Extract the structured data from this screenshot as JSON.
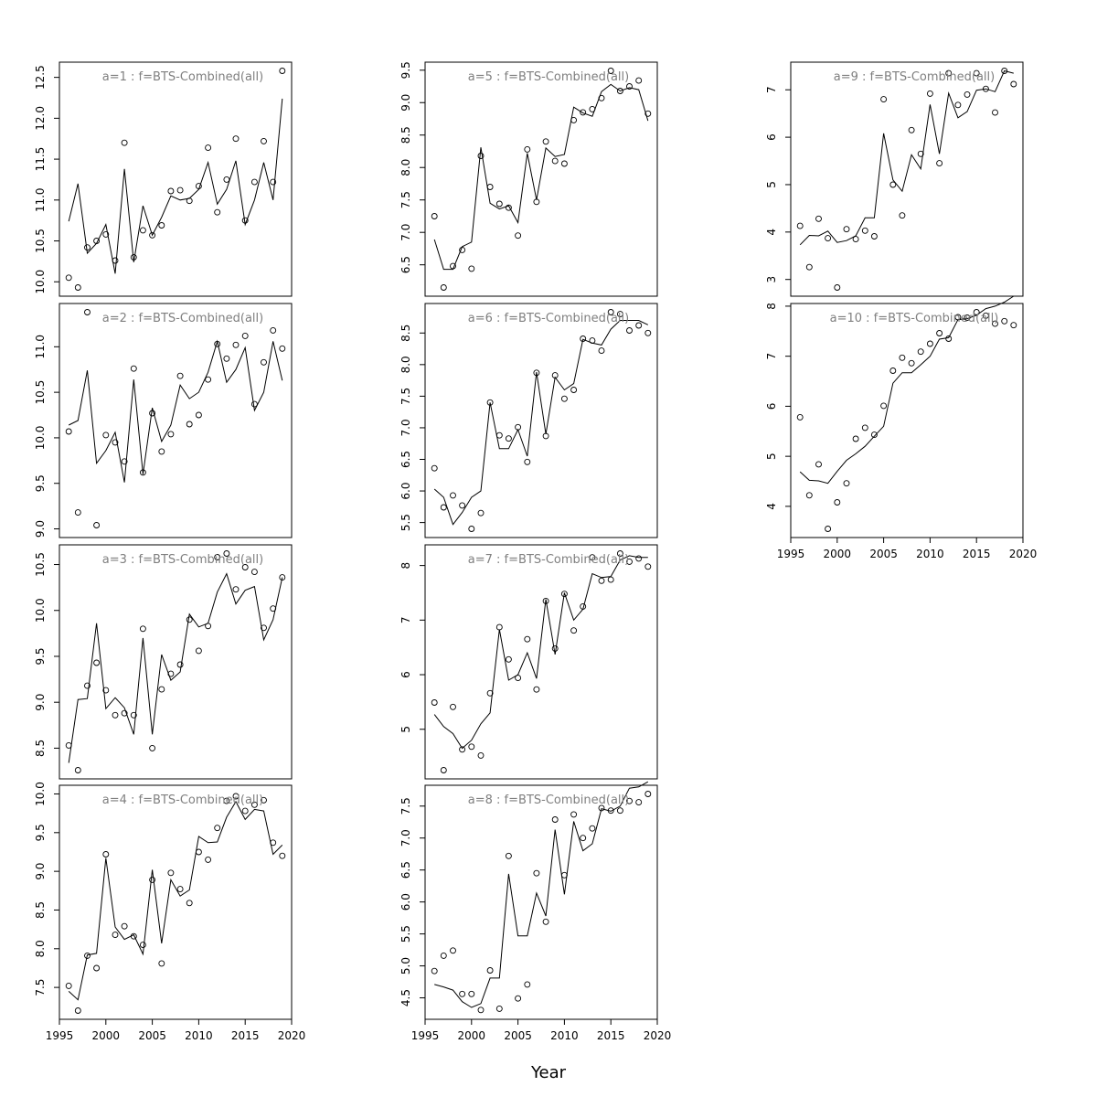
{
  "figure": {
    "xlabel": "Year"
  },
  "chart_data": [
    {
      "type": "scatter+line",
      "title": "a=1  :  f=BTS-Combined(all)",
      "xlim": [
        1995,
        2020
      ],
      "ylim": [
        9.93,
        12.58
      ],
      "yticks": [
        10.0,
        10.5,
        11.0,
        11.5,
        12.0,
        12.5
      ],
      "ytick_labels": [
        "10.0",
        "10.5",
        "11.0",
        "11.5",
        "12.0",
        "12.5"
      ],
      "x": [
        1996,
        1997,
        1998,
        1999,
        2000,
        2001,
        2002,
        2003,
        2004,
        2005,
        2006,
        2007,
        2008,
        2009,
        2010,
        2011,
        2012,
        2013,
        2014,
        2015,
        2016,
        2017,
        2018,
        2019
      ],
      "points": [
        10.05,
        9.93,
        10.42,
        10.5,
        10.58,
        10.26,
        11.7,
        10.3,
        10.63,
        10.57,
        10.69,
        11.11,
        11.12,
        10.99,
        11.17,
        11.64,
        10.85,
        11.25,
        11.75,
        10.75,
        11.22,
        11.72,
        11.22,
        12.58
      ],
      "line": [
        10.74,
        11.2,
        10.35,
        10.47,
        10.7,
        10.1,
        11.38,
        10.24,
        10.93,
        10.57,
        10.79,
        11.05,
        11.0,
        11.02,
        11.13,
        11.46,
        10.95,
        11.13,
        11.48,
        10.7,
        11.0,
        11.46,
        11.0,
        12.24
      ]
    },
    {
      "type": "scatter+line",
      "title": "a=2  :  f=BTS-Combined(all)",
      "xlim": [
        1995,
        2020
      ],
      "ylim": [
        9.0,
        11.38
      ],
      "yticks": [
        9.0,
        9.5,
        10.0,
        10.5,
        11.0
      ],
      "ytick_labels": [
        "9.0",
        "9.5",
        "10.0",
        "10.5",
        "11.0"
      ],
      "x": [
        1996,
        1997,
        1998,
        1999,
        2000,
        2001,
        2002,
        2003,
        2004,
        2005,
        2006,
        2007,
        2008,
        2009,
        2010,
        2011,
        2012,
        2013,
        2014,
        2015,
        2016,
        2017,
        2018,
        2019
      ],
      "points": [
        10.07,
        9.18,
        11.38,
        9.04,
        10.03,
        9.95,
        9.74,
        10.76,
        9.62,
        10.27,
        9.85,
        10.04,
        10.68,
        10.15,
        10.25,
        10.64,
        11.03,
        10.87,
        11.02,
        11.12,
        10.37,
        10.83,
        11.18,
        10.98
      ],
      "line": [
        10.14,
        10.19,
        10.74,
        9.72,
        9.86,
        10.06,
        9.51,
        10.64,
        9.6,
        10.33,
        9.96,
        10.14,
        10.58,
        10.43,
        10.5,
        10.72,
        11.06,
        10.61,
        10.75,
        10.99,
        10.3,
        10.5,
        11.06,
        10.63
      ]
    },
    {
      "type": "scatter+line",
      "title": "a=3  :  f=BTS-Combined(all)",
      "xlim": [
        1995,
        2020
      ],
      "ylim": [
        8.26,
        10.62
      ],
      "yticks": [
        8.5,
        9.0,
        9.5,
        10.0,
        10.5
      ],
      "ytick_labels": [
        "8.5",
        "9.0",
        "9.5",
        "10.0",
        "10.5"
      ],
      "x": [
        1996,
        1997,
        1998,
        1999,
        2000,
        2001,
        2002,
        2003,
        2004,
        2005,
        2006,
        2007,
        2008,
        2009,
        2010,
        2011,
        2012,
        2013,
        2014,
        2015,
        2016,
        2017,
        2018,
        2019
      ],
      "points": [
        8.53,
        8.26,
        9.18,
        9.43,
        9.13,
        8.86,
        8.88,
        8.86,
        9.8,
        8.5,
        9.14,
        9.31,
        9.41,
        9.9,
        9.56,
        9.83,
        10.58,
        10.62,
        10.23,
        10.47,
        10.42,
        9.81,
        10.02,
        10.36
      ],
      "line": [
        8.34,
        9.03,
        9.04,
        9.86,
        8.93,
        9.05,
        8.94,
        8.65,
        9.7,
        8.65,
        9.52,
        9.24,
        9.33,
        9.96,
        9.82,
        9.86,
        10.2,
        10.4,
        10.07,
        10.22,
        10.26,
        9.68,
        9.9,
        10.36
      ]
    },
    {
      "type": "scatter+line",
      "title": "a=4  :  f=BTS-Combined(all)",
      "xlim": [
        1995,
        2020
      ],
      "ylim": [
        7.2,
        10.0
      ],
      "yticks": [
        7.5,
        8.0,
        8.5,
        9.0,
        9.5,
        10.0
      ],
      "ytick_labels": [
        "7.5",
        "8.0",
        "8.5",
        "9.0",
        "9.5",
        "10.0"
      ],
      "x": [
        1996,
        1997,
        1998,
        1999,
        2000,
        2001,
        2002,
        2003,
        2004,
        2005,
        2006,
        2007,
        2008,
        2009,
        2010,
        2011,
        2012,
        2013,
        2014,
        2015,
        2016,
        2017,
        2018,
        2019
      ],
      "points": [
        7.52,
        7.2,
        7.91,
        7.75,
        9.22,
        8.18,
        8.29,
        8.16,
        8.05,
        8.89,
        7.81,
        8.98,
        8.77,
        8.59,
        9.25,
        9.15,
        9.56,
        9.91,
        9.97,
        9.78,
        9.86,
        9.92,
        9.37,
        9.2
      ],
      "line": [
        7.45,
        7.34,
        7.92,
        7.94,
        9.17,
        8.28,
        8.12,
        8.18,
        7.93,
        9.02,
        8.07,
        8.89,
        8.68,
        8.76,
        9.45,
        9.37,
        9.38,
        9.7,
        9.9,
        9.67,
        9.8,
        9.78,
        9.22,
        9.34
      ]
    },
    {
      "type": "scatter+line",
      "title": "a=5  :  f=BTS-Combined(all)",
      "xlim": [
        1995,
        2020
      ],
      "ylim": [
        6.15,
        9.49
      ],
      "yticks": [
        6.5,
        7.0,
        7.5,
        8.0,
        8.5,
        9.0,
        9.5
      ],
      "ytick_labels": [
        "6.5",
        "7.0",
        "7.5",
        "8.0",
        "8.5",
        "9.0",
        "9.5"
      ],
      "x": [
        1996,
        1997,
        1998,
        1999,
        2000,
        2001,
        2002,
        2003,
        2004,
        2005,
        2006,
        2007,
        2008,
        2009,
        2010,
        2011,
        2012,
        2013,
        2014,
        2015,
        2016,
        2017,
        2018,
        2019
      ],
      "points": [
        7.25,
        6.15,
        6.48,
        6.73,
        6.44,
        8.18,
        7.7,
        7.44,
        7.38,
        6.95,
        8.28,
        7.47,
        8.4,
        8.1,
        8.06,
        8.73,
        8.85,
        8.9,
        9.07,
        9.49,
        9.18,
        9.25,
        9.34,
        8.83
      ],
      "line": [
        6.89,
        6.43,
        6.43,
        6.78,
        6.85,
        8.31,
        7.45,
        7.36,
        7.41,
        7.15,
        8.22,
        7.5,
        8.3,
        8.17,
        8.2,
        8.93,
        8.84,
        8.79,
        9.17,
        9.28,
        9.18,
        9.23,
        9.2,
        8.72
      ]
    },
    {
      "type": "scatter+line",
      "title": "a=6  :  f=BTS-Combined(all)",
      "xlim": [
        1995,
        2020
      ],
      "ylim": [
        5.4,
        8.83
      ],
      "yticks": [
        5.5,
        6.0,
        6.5,
        7.0,
        7.5,
        8.0,
        8.5
      ],
      "ytick_labels": [
        "5.5",
        "6.0",
        "6.5",
        "7.0",
        "7.5",
        "8.0",
        "8.5"
      ],
      "x": [
        1996,
        1997,
        1998,
        1999,
        2000,
        2001,
        2002,
        2003,
        2004,
        2005,
        2006,
        2007,
        2008,
        2009,
        2010,
        2011,
        2012,
        2013,
        2014,
        2015,
        2016,
        2017,
        2018,
        2019
      ],
      "points": [
        6.36,
        5.74,
        5.93,
        5.77,
        5.4,
        5.65,
        7.4,
        6.88,
        6.83,
        7.01,
        6.46,
        7.87,
        6.87,
        7.83,
        7.46,
        7.6,
        8.41,
        8.38,
        8.22,
        8.83,
        8.8,
        8.54,
        8.62,
        8.5
      ],
      "line": [
        6.03,
        5.9,
        5.47,
        5.66,
        5.9,
        6.0,
        7.4,
        6.67,
        6.67,
        6.97,
        6.55,
        7.88,
        6.9,
        7.8,
        7.6,
        7.7,
        8.4,
        8.34,
        8.31,
        8.56,
        8.7,
        8.7,
        8.7,
        8.63
      ]
    },
    {
      "type": "scatter+line",
      "title": "a=7  :  f=BTS-Combined(all)",
      "xlim": [
        1995,
        2020
      ],
      "ylim": [
        4.25,
        8.22
      ],
      "yticks": [
        5,
        6,
        7,
        8
      ],
      "ytick_labels": [
        "5",
        "6",
        "7",
        "8"
      ],
      "x": [
        1996,
        1997,
        1998,
        1999,
        2000,
        2001,
        2002,
        2003,
        2004,
        2005,
        2006,
        2007,
        2008,
        2009,
        2010,
        2011,
        2012,
        2013,
        2014,
        2015,
        2016,
        2017,
        2018,
        2019
      ],
      "points": [
        5.49,
        4.25,
        5.41,
        4.63,
        4.68,
        4.52,
        5.66,
        6.87,
        6.28,
        5.94,
        6.65,
        5.73,
        7.35,
        6.48,
        7.48,
        6.81,
        7.25,
        8.15,
        7.72,
        7.74,
        8.22,
        8.07,
        8.13,
        7.98
      ],
      "line": [
        5.27,
        5.05,
        4.92,
        4.65,
        4.8,
        5.1,
        5.3,
        6.83,
        5.9,
        6.0,
        6.4,
        5.93,
        7.38,
        6.37,
        7.5,
        7.0,
        7.2,
        7.85,
        7.78,
        7.8,
        8.1,
        8.18,
        8.15,
        8.15
      ]
    },
    {
      "type": "scatter+line",
      "title": "a=8  :  f=BTS-Combined(all)",
      "xlim": [
        1995,
        2020
      ],
      "ylim": [
        4.3,
        7.69
      ],
      "yticks": [
        4.5,
        5.0,
        5.5,
        6.0,
        6.5,
        7.0,
        7.5
      ],
      "ytick_labels": [
        "4.5",
        "5.0",
        "5.5",
        "6.0",
        "6.5",
        "7.0",
        "7.5"
      ],
      "x": [
        1996,
        1997,
        1998,
        1999,
        2000,
        2001,
        2002,
        2003,
        2004,
        2005,
        2006,
        2007,
        2008,
        2009,
        2010,
        2011,
        2012,
        2013,
        2014,
        2015,
        2016,
        2017,
        2018,
        2019
      ],
      "points": [
        4.92,
        5.16,
        5.24,
        4.56,
        4.56,
        4.31,
        4.93,
        4.33,
        6.72,
        4.49,
        4.71,
        6.45,
        5.69,
        7.29,
        6.42,
        7.37,
        7.0,
        7.15,
        7.47,
        7.43,
        7.43,
        7.58,
        7.56,
        7.69
      ],
      "line": [
        4.71,
        4.67,
        4.62,
        4.44,
        4.35,
        4.41,
        4.81,
        4.81,
        6.44,
        5.47,
        5.47,
        6.14,
        5.78,
        7.13,
        6.12,
        7.26,
        6.8,
        6.91,
        7.46,
        7.42,
        7.5,
        7.78,
        7.8,
        7.88
      ]
    },
    {
      "type": "scatter+line",
      "title": "a=9  :  f=BTS-Combined(all)",
      "xlim": [
        1995,
        2020
      ],
      "ylim": [
        2.83,
        7.4
      ],
      "yticks": [
        3,
        4,
        5,
        6,
        7
      ],
      "ytick_labels": [
        "3",
        "4",
        "5",
        "6",
        "7"
      ],
      "x": [
        1996,
        1997,
        1998,
        1999,
        2000,
        2001,
        2002,
        2003,
        2004,
        2005,
        2006,
        2007,
        2008,
        2009,
        2010,
        2011,
        2012,
        2013,
        2014,
        2015,
        2016,
        2017,
        2018,
        2019
      ],
      "points": [
        4.13,
        3.26,
        4.28,
        3.87,
        2.83,
        4.06,
        3.85,
        4.03,
        3.91,
        6.8,
        5.0,
        4.35,
        6.15,
        5.65,
        6.92,
        5.45,
        7.35,
        6.68,
        6.9,
        7.35,
        7.02,
        6.52,
        7.4,
        7.12
      ],
      "line": [
        3.73,
        3.93,
        3.92,
        4.02,
        3.78,
        3.82,
        3.92,
        4.3,
        4.3,
        6.08,
        5.1,
        4.86,
        5.63,
        5.33,
        6.69,
        5.65,
        6.93,
        6.41,
        6.54,
        6.99,
        7.02,
        6.96,
        7.4,
        7.35
      ]
    },
    {
      "type": "scatter+line",
      "title": "a=10  :  f=BTS-Combined(all)",
      "xlim": [
        1995,
        2020
      ],
      "ylim": [
        3.55,
        7.88
      ],
      "yticks": [
        4,
        5,
        6,
        7,
        8
      ],
      "ytick_labels": [
        "4",
        "5",
        "6",
        "7",
        "8"
      ],
      "x": [
        1996,
        1997,
        1998,
        1999,
        2000,
        2001,
        2002,
        2003,
        2004,
        2005,
        2006,
        2007,
        2008,
        2009,
        2010,
        2011,
        2012,
        2013,
        2014,
        2015,
        2016,
        2017,
        2018,
        2019
      ],
      "points": [
        5.78,
        4.22,
        4.84,
        3.55,
        4.08,
        4.46,
        5.35,
        5.57,
        5.43,
        6.01,
        6.71,
        6.97,
        6.86,
        7.09,
        7.25,
        7.46,
        7.35,
        7.78,
        7.77,
        7.88,
        7.81,
        7.65,
        7.7,
        7.62
      ],
      "line": [
        4.69,
        4.52,
        4.51,
        4.46,
        4.7,
        4.92,
        5.05,
        5.2,
        5.4,
        5.6,
        6.46,
        6.67,
        6.67,
        6.83,
        7.0,
        7.34,
        7.37,
        7.73,
        7.75,
        7.82,
        7.95,
        8.0,
        8.08,
        8.2
      ]
    }
  ]
}
